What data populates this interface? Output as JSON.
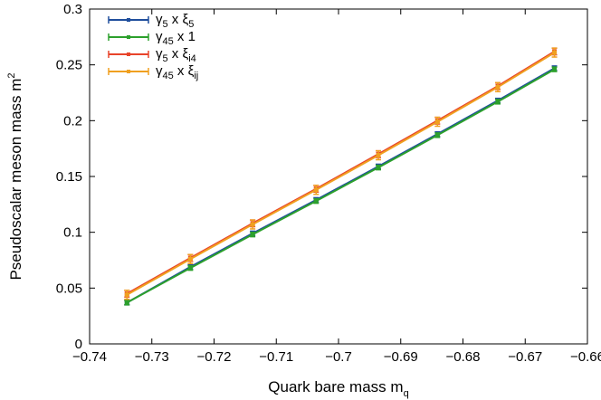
{
  "chart_data": {
    "type": "line",
    "title": "",
    "xlabel": "Quark bare mass m",
    "xlabel_sub": "q",
    "ylabel": "Pseudoscalar meson mass m",
    "ylabel_sup": "2",
    "xlim": [
      -0.74,
      -0.66
    ],
    "ylim": [
      0,
      0.3
    ],
    "xticks": [
      -0.74,
      -0.73,
      -0.72,
      -0.71,
      -0.7,
      -0.69,
      -0.68,
      -0.67,
      -0.66
    ],
    "xtick_labels": [
      "−0.74",
      "−0.73",
      "−0.72",
      "−0.71",
      "−0.7",
      "−0.69",
      "−0.68",
      "−0.67",
      "−0.66"
    ],
    "yticks": [
      0,
      0.05,
      0.1,
      0.15,
      0.2,
      0.25,
      0.3
    ],
    "ytick_labels": [
      "0",
      "0.05",
      "0.1",
      "0.15",
      "0.2",
      "0.25",
      "0.3"
    ],
    "grid": false,
    "legend_position": "top-left",
    "x": [
      -0.734,
      -0.7238,
      -0.7138,
      -0.7036,
      -0.6936,
      -0.6841,
      -0.6744,
      -0.6653
    ],
    "series": [
      {
        "name": "γ₅ x ξ₅",
        "legend": {
          "a": "γ",
          "as": "5",
          "b": " x ξ",
          "bs": "5"
        },
        "color": "#1f4e9c",
        "values": [
          0.037,
          0.069,
          0.099,
          0.129,
          0.159,
          0.188,
          0.218,
          0.247
        ],
        "errors": [
          0.002,
          0.002,
          0.002,
          0.002,
          0.002,
          0.002,
          0.002,
          0.002
        ]
      },
      {
        "name": "γ₄₅ x 1",
        "legend": {
          "a": "γ",
          "as": "45",
          "b": " x 1",
          "bs": ""
        },
        "color": "#2ca02c",
        "values": [
          0.037,
          0.068,
          0.098,
          0.128,
          0.158,
          0.187,
          0.217,
          0.246
        ],
        "errors": [
          0.002,
          0.002,
          0.002,
          0.002,
          0.002,
          0.002,
          0.002,
          0.002
        ]
      },
      {
        "name": "γ₅ x ξᵢ₄",
        "legend": {
          "a": "γ",
          "as": "5",
          "b": " x ξ",
          "bs": "i4"
        },
        "color": "#e8442a",
        "values": [
          0.045,
          0.077,
          0.108,
          0.139,
          0.17,
          0.2,
          0.231,
          0.262
        ],
        "errors": [
          0.003,
          0.003,
          0.003,
          0.003,
          0.003,
          0.003,
          0.003,
          0.003
        ]
      },
      {
        "name": "γ₄₅ x ξᵢⱼ",
        "legend": {
          "a": "γ",
          "as": "45",
          "b": " x ξ",
          "bs": "ij"
        },
        "color": "#f0a020",
        "values": [
          0.044,
          0.076,
          0.107,
          0.138,
          0.169,
          0.199,
          0.23,
          0.261
        ],
        "errors": [
          0.004,
          0.004,
          0.004,
          0.004,
          0.004,
          0.004,
          0.004,
          0.004
        ]
      }
    ]
  }
}
